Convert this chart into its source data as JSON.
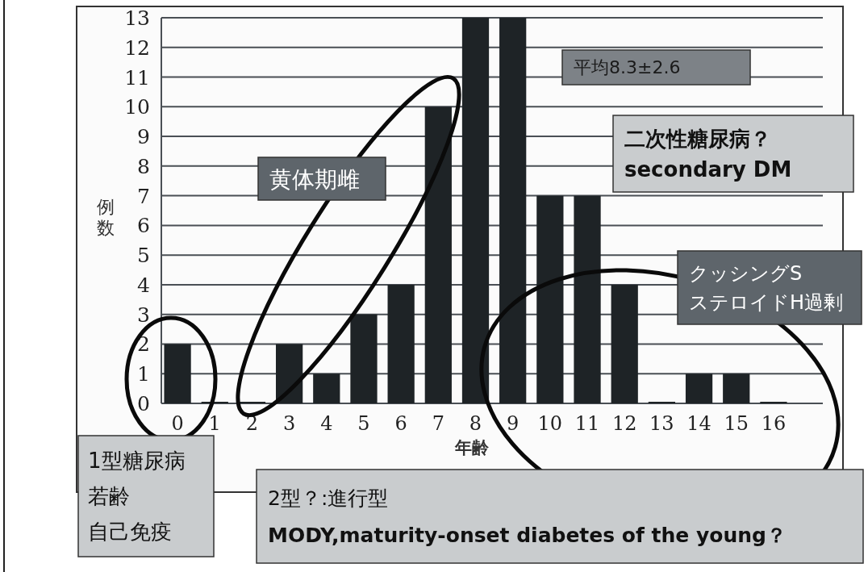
{
  "chart_data": {
    "type": "bar",
    "categories": [
      "0",
      "1",
      "2",
      "3",
      "4",
      "5",
      "6",
      "7",
      "8",
      "9",
      "10",
      "11",
      "12",
      "13",
      "14",
      "15",
      "16"
    ],
    "values": [
      2,
      0,
      0,
      2,
      1,
      3,
      4,
      10,
      13,
      13,
      7,
      7,
      4,
      0,
      1,
      1,
      0
    ],
    "color": "#1e2326",
    "xlabel": "年齢",
    "ylabel": "例数",
    "ylim": [
      0,
      13
    ],
    "yticks": [
      0,
      1,
      2,
      3,
      4,
      5,
      6,
      7,
      8,
      9,
      10,
      11,
      12,
      13
    ],
    "grid": "y",
    "legend": false,
    "annotations": [
      "平均8.3±2.6",
      "黄体期雌",
      "二次性糖尿病？",
      "secondary DM",
      "クッシングS",
      "ステロイドH過剰",
      "1型糖尿病",
      "若齢",
      "自己免疫",
      "2型？:進行型",
      "MODY,maturity-onset diabetes of the young？"
    ]
  }
}
